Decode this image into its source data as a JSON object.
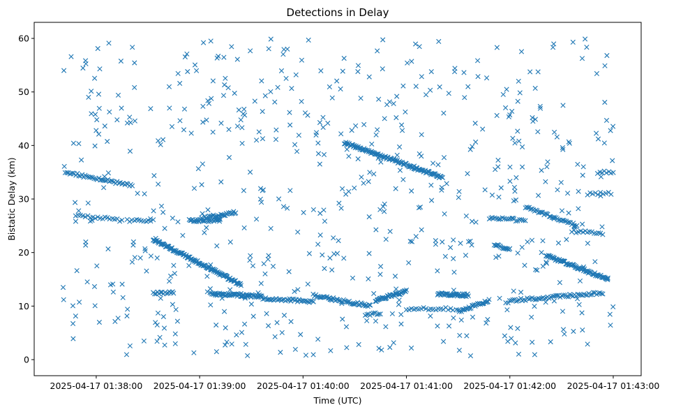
{
  "chart_data": {
    "type": "scatter",
    "title": "Detections in Delay",
    "xlabel": "Time (UTC)",
    "ylabel": "Bistatic Delay (km)",
    "marker": "x",
    "color": "#1f77b4",
    "grid": false,
    "xlim": [
      -0.6,
      5.27
    ],
    "ylim": [
      -3.0,
      63.0
    ],
    "x_units": "minutes after 2025-04-17 01:38:00",
    "x_ticks": [
      0,
      1,
      2,
      3,
      4,
      5
    ],
    "x_tick_labels": [
      "2025-04-17 01:38:00",
      "2025-04-17 01:39:00",
      "2025-04-17 01:40:00",
      "2025-04-17 01:41:00",
      "2025-04-17 01:42:00",
      "2025-04-17 01:43:00"
    ],
    "y_ticks": [
      0,
      10,
      20,
      30,
      40,
      50,
      60
    ],
    "y_tick_labels": [
      "0",
      "10",
      "20",
      "30",
      "40",
      "50",
      "60"
    ],
    "x_range": [
      -0.33,
      5.0
    ],
    "tracks": [
      {
        "x": [
          -0.3,
          0.35
        ],
        "y": [
          35.0,
          32.5
        ],
        "n": 45
      },
      {
        "x": [
          0.3,
          0.55
        ],
        "y": [
          26.0,
          26.0
        ],
        "n": 12
      },
      {
        "x": [
          -0.2,
          0.25
        ],
        "y": [
          27.0,
          26.0
        ],
        "n": 20
      },
      {
        "x": [
          0.55,
          1.4
        ],
        "y": [
          22.5,
          14.0
        ],
        "n": 130
      },
      {
        "x": [
          0.9,
          1.2
        ],
        "y": [
          26.0,
          26.0
        ],
        "n": 30
      },
      {
        "x": [
          1.05,
          1.35
        ],
        "y": [
          26.5,
          27.5
        ],
        "n": 30
      },
      {
        "x": [
          0.55,
          0.75
        ],
        "y": [
          12.5,
          12.5
        ],
        "n": 15
      },
      {
        "x": [
          1.1,
          1.6
        ],
        "y": [
          12.3,
          11.8
        ],
        "n": 60
      },
      {
        "x": [
          1.6,
          2.1
        ],
        "y": [
          11.5,
          10.8
        ],
        "n": 40
      },
      {
        "x": [
          2.1,
          2.65
        ],
        "y": [
          12.0,
          10.0
        ],
        "n": 50
      },
      {
        "x": [
          2.6,
          2.75
        ],
        "y": [
          8.5,
          8.5
        ],
        "n": 10
      },
      {
        "x": [
          2.7,
          3.0
        ],
        "y": [
          11.0,
          12.8
        ],
        "n": 40
      },
      {
        "x": [
          2.4,
          3.35
        ],
        "y": [
          40.5,
          34.0
        ],
        "n": 120
      },
      {
        "x": [
          3.3,
          3.6
        ],
        "y": [
          12.3,
          12.0
        ],
        "n": 40
      },
      {
        "x": [
          3.0,
          3.45
        ],
        "y": [
          9.5,
          9.5
        ],
        "n": 20
      },
      {
        "x": [
          3.5,
          3.8
        ],
        "y": [
          9.0,
          11.0
        ],
        "n": 30
      },
      {
        "x": [
          3.8,
          4.15
        ],
        "y": [
          26.5,
          26.0
        ],
        "n": 20
      },
      {
        "x": [
          3.85,
          4.0
        ],
        "y": [
          21.5,
          20.5
        ],
        "n": 15
      },
      {
        "x": [
          4.15,
          4.65
        ],
        "y": [
          28.5,
          25.0
        ],
        "n": 40
      },
      {
        "x": [
          4.35,
          4.95
        ],
        "y": [
          19.5,
          15.0
        ],
        "n": 80
      },
      {
        "x": [
          4.0,
          4.9
        ],
        "y": [
          11.0,
          12.5
        ],
        "n": 60
      },
      {
        "x": [
          4.75,
          4.98
        ],
        "y": [
          31.0,
          31.0
        ],
        "n": 10
      },
      {
        "x": [
          4.85,
          5.0
        ],
        "y": [
          35.0,
          35.0
        ],
        "n": 8
      },
      {
        "x": [
          4.6,
          4.9
        ],
        "y": [
          24.0,
          23.5
        ],
        "n": 15
      }
    ],
    "noise": {
      "count": 620,
      "y_range": [
        0.5,
        60.0
      ]
    }
  }
}
